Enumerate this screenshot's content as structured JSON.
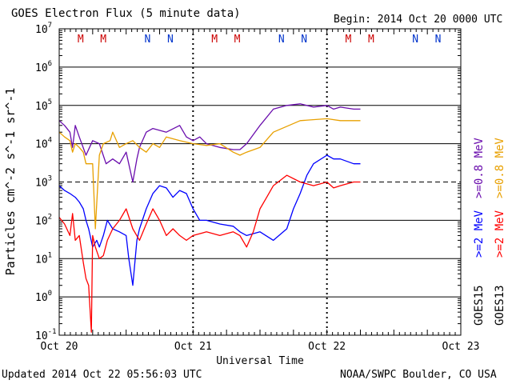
{
  "header": {
    "title": "GOES Electron Flux (5 minute data)",
    "begin": "Begin: 2014 Oct 20 0000 UTC"
  },
  "footer": {
    "updated": "Updated 2014 Oct 22 05:56:03 UTC",
    "credit": "NOAA/SWPC Boulder, CO USA"
  },
  "colors": {
    "goes15_ge2": "#0000ff",
    "goes15_ge08": "#6a0dad",
    "goes13_ge2": "#ff0000",
    "goes13_ge08": "#e8a000",
    "manoeuvre_M": "#cc0000",
    "manoeuvre_N": "#0033cc"
  },
  "chart_data": {
    "type": "line",
    "title": "GOES Electron Flux (5 minute data)",
    "xlabel": "Universal Time",
    "ylabel": "Particles cm^-2 s^-1 sr^-1",
    "x_unit": "days since 2014 Oct 20 0000 UTC",
    "xlim": [
      0,
      3
    ],
    "x_ticks": [
      {
        "x": 0,
        "label": "Oct 20"
      },
      {
        "x": 1,
        "label": "Oct 21"
      },
      {
        "x": 2,
        "label": "Oct 22"
      },
      {
        "x": 3,
        "label": "Oct 23"
      }
    ],
    "y_scale": "log",
    "y_exponents": [
      -1,
      0,
      1,
      2,
      3,
      4,
      5,
      6,
      7
    ],
    "ylim": [
      0.1,
      10000000
    ],
    "grid": "horizontal at each decade",
    "threshold": 1000,
    "markers": [
      {
        "x": 0.16,
        "label": "M"
      },
      {
        "x": 0.33,
        "label": "M"
      },
      {
        "x": 0.66,
        "label": "N"
      },
      {
        "x": 0.83,
        "label": "N"
      },
      {
        "x": 1.16,
        "label": "M"
      },
      {
        "x": 1.33,
        "label": "M"
      },
      {
        "x": 1.66,
        "label": "N"
      },
      {
        "x": 1.83,
        "label": "N"
      },
      {
        "x": 2.16,
        "label": "M"
      },
      {
        "x": 2.33,
        "label": "M"
      },
      {
        "x": 2.66,
        "label": "N"
      },
      {
        "x": 2.83,
        "label": "N"
      }
    ],
    "legend": {
      "goes15": "GOES15",
      "goes13": "GOES13",
      "ge08": ">=0.8  MeV",
      "ge2": ">=2  MeV"
    },
    "series": [
      {
        "key": "goes15_ge08",
        "name": "GOES15 >=0.8 MeV",
        "x": [
          0,
          0.04,
          0.08,
          0.1,
          0.12,
          0.15,
          0.2,
          0.25,
          0.3,
          0.35,
          0.4,
          0.45,
          0.5,
          0.55,
          0.58,
          0.6,
          0.65,
          0.7,
          0.8,
          0.9,
          0.95,
          1.0,
          1.05,
          1.1,
          1.2,
          1.3,
          1.35,
          1.4,
          1.5,
          1.6,
          1.7,
          1.8,
          1.9,
          2.0,
          2.05,
          2.1,
          2.2,
          2.25
        ],
        "y": [
          40000,
          30000,
          20000,
          8000,
          30000,
          15000,
          5000,
          12000,
          10000,
          3000,
          4000,
          3000,
          6000,
          1000,
          4000,
          8000,
          20000,
          25000,
          20000,
          30000,
          15000,
          12000,
          15000,
          10000,
          8000,
          7000,
          7000,
          10000,
          30000,
          80000,
          100000,
          110000,
          90000,
          100000,
          80000,
          90000,
          80000,
          80000
        ]
      },
      {
        "key": "goes13_ge08",
        "name": "GOES13 >=0.8 MeV",
        "x": [
          0,
          0.04,
          0.08,
          0.1,
          0.12,
          0.15,
          0.18,
          0.2,
          0.22,
          0.25,
          0.27,
          0.3,
          0.33,
          0.38,
          0.4,
          0.45,
          0.5,
          0.55,
          0.6,
          0.65,
          0.7,
          0.75,
          0.8,
          0.9,
          1.0,
          1.1,
          1.2,
          1.3,
          1.35,
          1.4,
          1.5,
          1.6,
          1.8,
          2.0,
          2.1,
          2.2,
          2.25
        ],
        "y": [
          20000,
          15000,
          12000,
          6000,
          10000,
          8000,
          6000,
          3000,
          3000,
          3000,
          60,
          5000,
          10000,
          12000,
          20000,
          8000,
          10000,
          12000,
          8000,
          6000,
          10000,
          8000,
          15000,
          12000,
          10000,
          9000,
          10000,
          6000,
          5000,
          6000,
          8000,
          20000,
          40000,
          45000,
          40000,
          40000,
          40000
        ]
      },
      {
        "key": "goes15_ge2",
        "name": "GOES15 >=2 MeV",
        "x": [
          0,
          0.04,
          0.08,
          0.12,
          0.15,
          0.18,
          0.2,
          0.22,
          0.25,
          0.28,
          0.3,
          0.33,
          0.36,
          0.4,
          0.45,
          0.5,
          0.52,
          0.55,
          0.58,
          0.6,
          0.65,
          0.7,
          0.75,
          0.8,
          0.85,
          0.9,
          0.95,
          1.0,
          1.05,
          1.1,
          1.2,
          1.3,
          1.35,
          1.4,
          1.5,
          1.6,
          1.7,
          1.75,
          1.8,
          1.85,
          1.9,
          2.0,
          2.05,
          2.1,
          2.2,
          2.25
        ],
        "y": [
          800,
          600,
          500,
          400,
          300,
          200,
          100,
          60,
          20,
          30,
          20,
          40,
          100,
          60,
          50,
          40,
          10,
          2,
          30,
          60,
          200,
          500,
          800,
          700,
          400,
          600,
          500,
          200,
          100,
          100,
          80,
          70,
          50,
          40,
          50,
          30,
          60,
          200,
          500,
          1500,
          3000,
          5000,
          4000,
          4000,
          3000,
          3000
        ]
      },
      {
        "key": "goes13_ge2",
        "name": "GOES13 >=2 MeV",
        "x": [
          0,
          0.04,
          0.08,
          0.1,
          0.12,
          0.15,
          0.18,
          0.2,
          0.22,
          0.24,
          0.25,
          0.27,
          0.3,
          0.33,
          0.36,
          0.4,
          0.45,
          0.5,
          0.55,
          0.6,
          0.65,
          0.7,
          0.75,
          0.8,
          0.85,
          0.9,
          0.95,
          1.0,
          1.1,
          1.2,
          1.3,
          1.35,
          1.4,
          1.45,
          1.5,
          1.55,
          1.6,
          1.7,
          1.8,
          1.9,
          2.0,
          2.05,
          2.1,
          2.2,
          2.25
        ],
        "y": [
          120,
          80,
          40,
          150,
          30,
          40,
          8,
          3,
          2,
          0.12,
          40,
          20,
          10,
          12,
          30,
          60,
          100,
          200,
          60,
          30,
          80,
          200,
          100,
          40,
          60,
          40,
          30,
          40,
          50,
          40,
          50,
          40,
          20,
          50,
          200,
          400,
          800,
          1500,
          1000,
          800,
          1000,
          700,
          800,
          1000,
          1000
        ]
      }
    ]
  }
}
